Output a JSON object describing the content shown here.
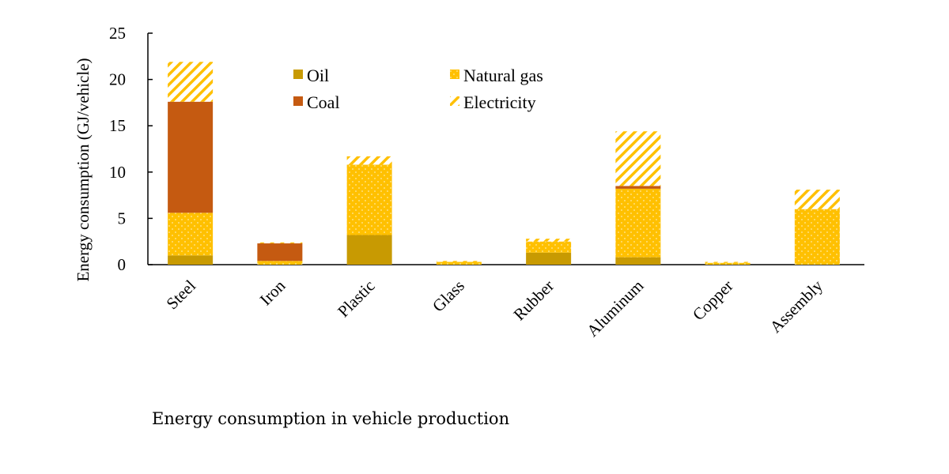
{
  "chart_data": {
    "type": "bar",
    "stacked": true,
    "title": "",
    "xlabel": "",
    "ylabel": "Energy consumption (GJ/vehicle)",
    "ylim": [
      0,
      25
    ],
    "yticks": [
      0,
      5,
      10,
      15,
      20,
      25
    ],
    "grid": false,
    "legend_position": "top-center",
    "categories": [
      "Steel",
      "Iron",
      "Plastic",
      "Glass",
      "Rubber",
      "Aluminum",
      "Copper",
      "Assembly"
    ],
    "series": [
      {
        "name": "Oil",
        "color": "#C89A02",
        "pattern": "solid",
        "values": [
          1.0,
          0.0,
          3.2,
          0.0,
          1.3,
          0.8,
          0.0,
          0.0
        ]
      },
      {
        "name": "Natural gas",
        "color": "#FFC000",
        "pattern": "dots",
        "values": [
          4.6,
          0.4,
          7.6,
          0.3,
          1.2,
          7.4,
          0.2,
          6.0
        ]
      },
      {
        "name": "Coal",
        "color": "#C55A11",
        "pattern": "solid",
        "values": [
          12.0,
          1.9,
          0.0,
          0.0,
          0.0,
          0.3,
          0.0,
          0.0
        ]
      },
      {
        "name": "Electricity",
        "color": "#FFC000",
        "pattern": "hatch",
        "values": [
          4.3,
          0.1,
          0.9,
          0.1,
          0.3,
          5.9,
          0.1,
          2.1
        ]
      }
    ],
    "legend_order": [
      "Oil",
      "Natural gas",
      "Coal",
      "Electricity"
    ]
  },
  "caption": "Energy consumption in vehicle production"
}
